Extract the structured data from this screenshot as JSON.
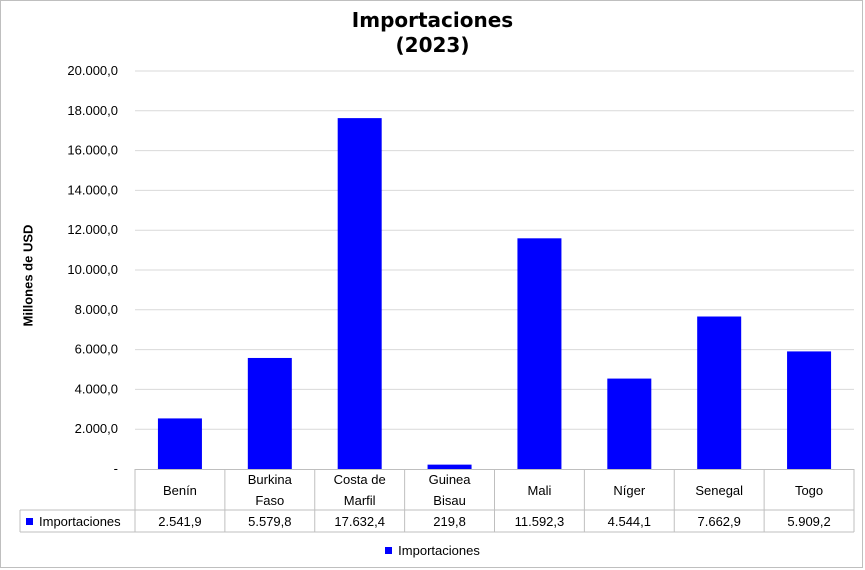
{
  "colors": {
    "bar": "#0000ff",
    "grid": "#d9d9d9",
    "border": "#bfbfbf"
  },
  "chart_data": {
    "type": "bar",
    "title": "Importaciones",
    "subtitle": "(2023)",
    "ylabel": "Millones de USD",
    "xlabel": "",
    "ylim": [
      0,
      20000
    ],
    "y_ticks": [
      0,
      2000,
      4000,
      6000,
      8000,
      10000,
      12000,
      14000,
      16000,
      18000,
      20000
    ],
    "y_tick_labels": [
      "-",
      "2.000,0",
      "4.000,0",
      "6.000,0",
      "8.000,0",
      "10.000,0",
      "12.000,0",
      "14.000,0",
      "16.000,0",
      "18.000,0",
      "20.000,0"
    ],
    "grid": true,
    "legend_position": "bottom",
    "categories": [
      [
        "Benín"
      ],
      [
        "Burkina",
        "Faso"
      ],
      [
        "Costa de",
        "Marfil"
      ],
      [
        "Guinea",
        "Bisau"
      ],
      [
        "Mali"
      ],
      [
        "Níger"
      ],
      [
        "Senegal"
      ],
      [
        "Togo"
      ]
    ],
    "series": [
      {
        "name": "Importaciones",
        "values": [
          2541.9,
          5579.8,
          17632.4,
          219.8,
          11592.3,
          4544.1,
          7662.9,
          5909.2
        ],
        "value_labels": [
          "2.541,9",
          "5.579,8",
          "17.632,4",
          "219,8",
          "11.592,3",
          "4.544,1",
          "7.662,9",
          "5.909,2"
        ]
      }
    ]
  }
}
